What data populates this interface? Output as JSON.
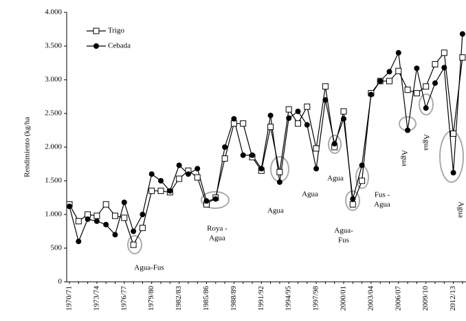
{
  "chart_data": {
    "type": "line",
    "y_label": "Rendimiento (kg/ha",
    "categories": [
      "1970/71",
      null,
      null,
      "1973/74",
      null,
      null,
      "1976/77",
      null,
      null,
      "1979/80",
      null,
      null,
      "1982/83",
      null,
      null,
      "1985/86",
      null,
      null,
      "1988/89",
      null,
      null,
      "1991/92",
      null,
      null,
      "1994/95",
      null,
      null,
      "1997/98",
      null,
      null,
      "2000/01",
      null,
      null,
      "2003/04",
      null,
      null,
      "2006/07",
      null,
      null,
      "2009/10",
      null,
      null,
      "2012/13",
      null
    ],
    "series": [
      {
        "name": "Trigo",
        "color": "#000000",
        "marker": "square",
        "values": [
          1150,
          900,
          1000,
          980,
          1150,
          980,
          950,
          550,
          800,
          1350,
          1350,
          1330,
          1530,
          1650,
          1550,
          1150,
          1250,
          1830,
          2350,
          2350,
          1850,
          1650,
          2300,
          1630,
          2560,
          2350,
          2600,
          1980,
          2900,
          2000,
          2530,
          1150,
          1500,
          2800,
          2980,
          2980,
          3130,
          2850,
          2800,
          2900,
          3230,
          3400,
          2200,
          3330
        ]
      },
      {
        "name": "Cebada",
        "color": "#000000",
        "marker": "circle",
        "values": [
          1120,
          600,
          930,
          900,
          850,
          700,
          1180,
          750,
          1000,
          1600,
          1500,
          1350,
          1730,
          1600,
          1680,
          1200,
          1230,
          2000,
          2420,
          1880,
          1880,
          1680,
          2470,
          1480,
          2430,
          2530,
          2330,
          1680,
          2700,
          2050,
          2420,
          1230,
          1730,
          2780,
          2980,
          3120,
          3400,
          2250,
          3170,
          2580,
          2950,
          3180,
          1620,
          3680
        ]
      }
    ],
    "ylim": [
      0,
      4000
    ],
    "yticks": [
      0,
      500,
      {
        "value": 1000,
        "label": "1.000"
      },
      {
        "value": 1500,
        "label": "1.500"
      },
      {
        "value": 2000,
        "label": "2.000"
      },
      {
        "value": 2500,
        "label": "2.500"
      },
      {
        "value": 3000,
        "label": "3.000"
      },
      {
        "value": 3500,
        "label": "3.500"
      },
      {
        "value": 4000,
        "label": "4.000"
      }
    ],
    "legend": "upper left",
    "annotations": [
      [
        "Agua-Fus"
      ],
      [
        "Roya -",
        "Agua"
      ],
      [
        "Agua"
      ],
      [
        "Agua"
      ],
      [
        "Agua"
      ],
      [
        "Agua-",
        "Fus"
      ],
      [
        "Fus -",
        "Agua"
      ],
      [
        "Agua"
      ],
      [
        "Agua"
      ],
      [
        "Agua"
      ]
    ]
  }
}
